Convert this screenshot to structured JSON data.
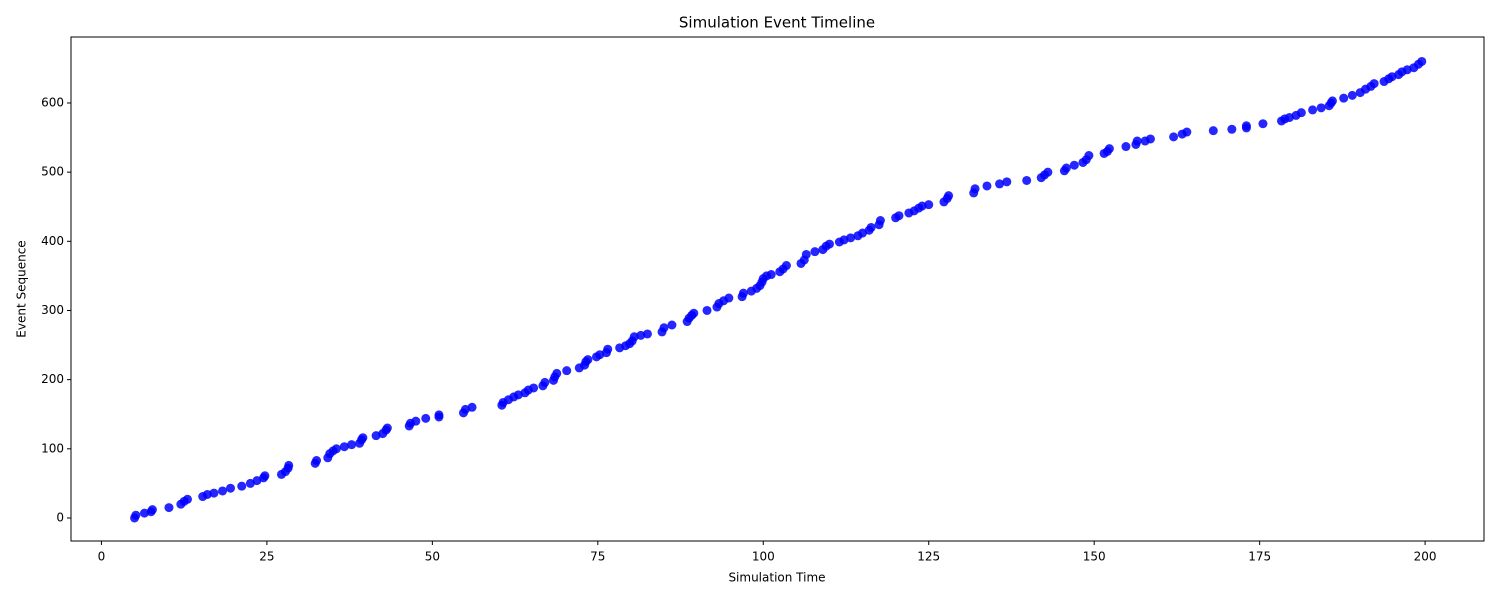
{
  "chart_data": {
    "type": "scatter",
    "title": "Simulation Event Timeline",
    "xlabel": "Simulation Time",
    "ylabel": "Event Sequence",
    "color": "#0000ff",
    "grid": false,
    "xlim": [
      -4.6,
      208.9
    ],
    "ylim": [
      -33.3,
      695.4
    ],
    "xticks": [
      0,
      25,
      50,
      75,
      100,
      125,
      150,
      175,
      200
    ],
    "yticks": [
      0,
      100,
      200,
      300,
      400,
      500,
      600
    ],
    "x": [
      5,
      5.2,
      6.5,
      7.5,
      7.7,
      10.2,
      12,
      12.5,
      13,
      15.3,
      16,
      17,
      18.3,
      19.5,
      21.2,
      22.5,
      23.5,
      24.5,
      24.7,
      27.2,
      27.8,
      28.2,
      28.3,
      32.3,
      32.5,
      34.2,
      34.5,
      35,
      35.5,
      36.7,
      37.8,
      39,
      39.3,
      39.5,
      41.5,
      42.5,
      43,
      43.2,
      46.5,
      46.7,
      47.5,
      49,
      51,
      51,
      54.7,
      55,
      56,
      60.5,
      60.7,
      61.5,
      62.3,
      63,
      64,
      64.5,
      65.3,
      66.7,
      67,
      68.3,
      68.5,
      68.8,
      70.3,
      72.2,
      73,
      73.2,
      73.5,
      74.8,
      75.3,
      76.3,
      76.5,
      78.3,
      79.2,
      79.8,
      80.2,
      80.5,
      81.5,
      82.5,
      84.7,
      85,
      86.2,
      88.5,
      88.8,
      89.2,
      89.5,
      91.5,
      93,
      93.3,
      94,
      94.8,
      96.8,
      97,
      98.2,
      99,
      99.5,
      99.8,
      100,
      100.5,
      101.2,
      102.5,
      103,
      103.5,
      105.7,
      106.2,
      106.5,
      107.8,
      109,
      109.5,
      110,
      111.5,
      112.2,
      113.2,
      114.3,
      115,
      116,
      116.3,
      117.5,
      117.7,
      120,
      120.5,
      122,
      122.8,
      123.5,
      124,
      125,
      127.3,
      127.8,
      128,
      131.8,
      132,
      133.8,
      135.7,
      136.8,
      139.8,
      142,
      142.5,
      143,
      145.5,
      145.8,
      147,
      148.3,
      148.8,
      149.2,
      151.5,
      152,
      152.3,
      154.8,
      156.3,
      156.5,
      157.7,
      158.5,
      162,
      163.3,
      164,
      168,
      170.8,
      173,
      173,
      175.5,
      178.3,
      178.8,
      179.5,
      180.5,
      181.3,
      183,
      184.3,
      185.5,
      185.8,
      186,
      187.7,
      189,
      190.2,
      191,
      191.8,
      192.3,
      193.8,
      194.5,
      195,
      196,
      196.5,
      197.3,
      198.3,
      199,
      199.5
    ],
    "values": [
      0,
      4,
      7,
      9,
      12,
      15,
      20,
      24,
      27,
      31,
      34,
      36,
      39,
      43,
      46,
      50,
      54,
      58,
      61,
      63,
      67,
      72,
      76,
      79,
      83,
      87,
      93,
      97,
      100,
      103,
      106,
      108,
      113,
      116,
      119,
      122,
      127,
      130,
      133,
      137,
      140,
      144,
      146,
      149,
      152,
      157,
      160,
      163,
      167,
      171,
      175,
      178,
      181,
      185,
      188,
      191,
      196,
      199,
      204,
      209,
      213,
      217,
      221,
      226,
      229,
      233,
      236,
      239,
      244,
      246,
      249,
      252,
      256,
      262,
      264,
      266,
      269,
      275,
      279,
      284,
      289,
      293,
      296,
      300,
      305,
      310,
      314,
      318,
      320,
      325,
      328,
      332,
      336,
      341,
      346,
      350,
      352,
      356,
      360,
      365,
      368,
      373,
      381,
      385,
      388,
      393,
      396,
      399,
      402,
      405,
      408,
      412,
      416,
      420,
      424,
      430,
      434,
      437,
      441,
      444,
      448,
      451,
      453,
      457,
      462,
      466,
      470,
      476,
      480,
      483,
      486,
      488,
      492,
      496,
      500,
      502,
      506,
      510,
      514,
      518,
      524,
      527,
      530,
      534,
      537,
      540,
      545,
      545,
      548,
      551,
      555,
      558,
      560,
      562,
      564,
      567,
      570,
      574,
      577,
      579,
      582,
      586,
      590,
      593,
      596,
      600,
      603,
      607,
      611,
      615,
      620,
      624,
      628,
      631,
      635,
      638,
      641,
      645,
      648,
      651,
      656,
      660
    ]
  }
}
